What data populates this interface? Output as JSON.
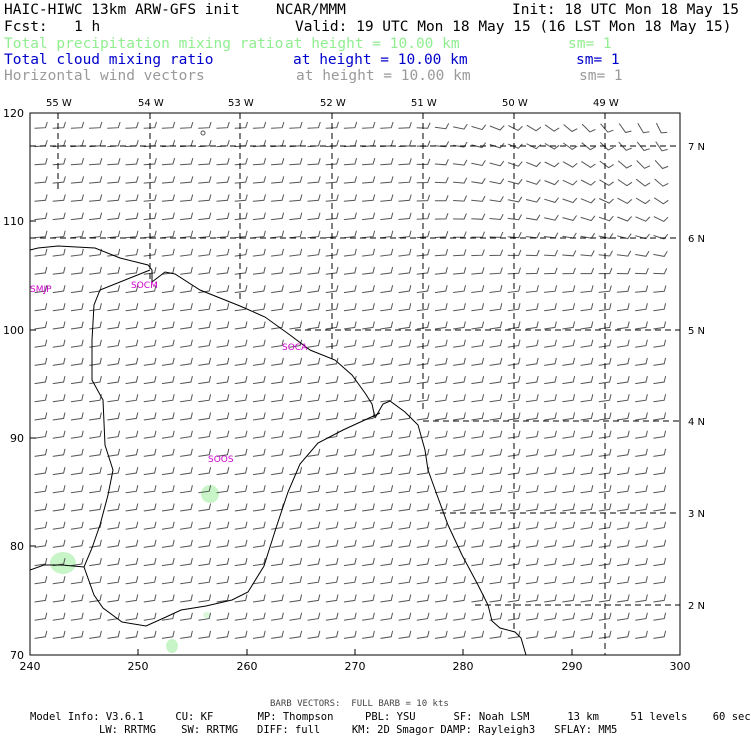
{
  "header": {
    "model": "HAIC-HIWC 13km ARW-GFS init",
    "org": "NCAR/MMM",
    "init": "Init: 18 UTC Mon 18 May 15",
    "fcst_label": "Fcst:",
    "fcst_value": "1 h",
    "valid": "Valid: 19 UTC Mon 18 May 15 (16 LST Mon 18 May 15)"
  },
  "fields": [
    {
      "name": "Total precipitation mixing ratio",
      "level": "at height = 10.00 km",
      "sm": "sm= 1",
      "color": "#90ee90"
    },
    {
      "name": "Total cloud mixing ratio",
      "level": "at height = 10.00 km",
      "sm": "sm= 1",
      "color": "#0000cd"
    },
    {
      "name": "Horizontal wind vectors",
      "level": "at height = 10.00 km",
      "sm": "sm= 1",
      "color": "#9a9a9a"
    }
  ],
  "map": {
    "lon_labels": [
      "55 W",
      "54 W",
      "53 W",
      "52 W",
      "51 W",
      "50 W",
      "49 W"
    ],
    "lat_labels": [
      "7 N",
      "6 N",
      "5 N",
      "4 N",
      "3 N",
      "2 N"
    ],
    "x_ticks": [
      "240",
      "250",
      "260",
      "270",
      "280",
      "290",
      "300"
    ],
    "y_ticks": [
      "120",
      "110",
      "100",
      "90",
      "80",
      "70"
    ],
    "stations": [
      "SMJP",
      "SOCM",
      "SOCA",
      "SOOS"
    ],
    "station_color": "#cc00cc",
    "coast_color": "#000000",
    "barb_color": "#555555",
    "precip_color": "#c8f5c8"
  },
  "footer": {
    "barb_note": "BARB VECTORS:  FULL BARB = 10 kts",
    "line1": "Model Info: V3.6.1     CU: KF       MP: Thompson     PBL: YSU      SF: Noah LSM      13 km     51 levels    60 sec",
    "line2": "LW: RRTMG    SW: RRTMG   DIFF: full     KM: 2D Smagor DAMP: Rayleigh3   SFLAY: MM5"
  }
}
